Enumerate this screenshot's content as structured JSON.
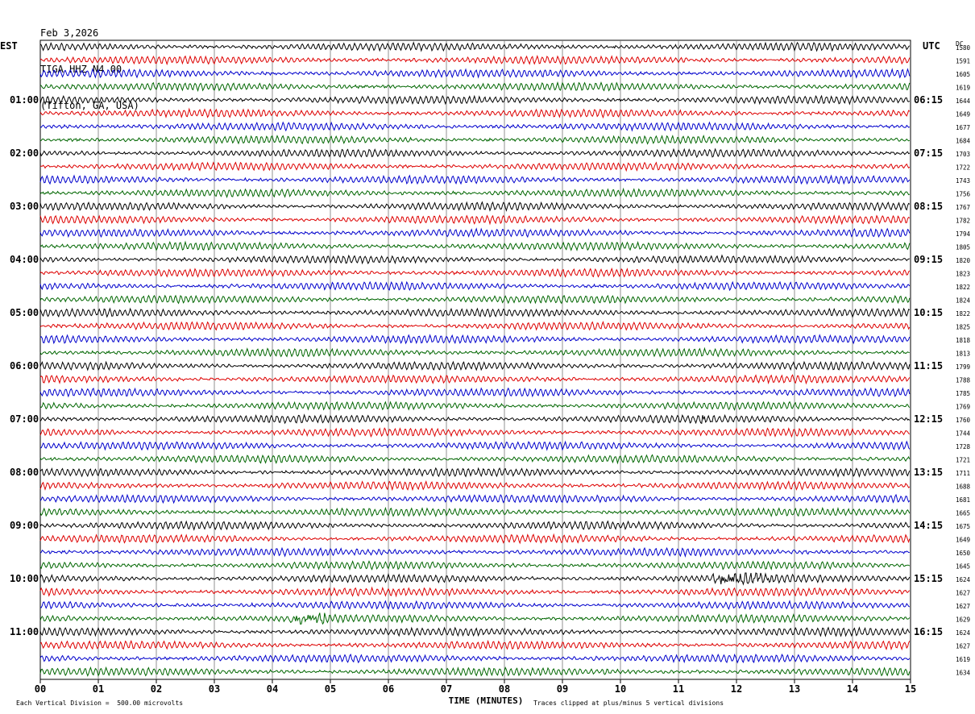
{
  "header": {
    "date": "Feb 3,2026",
    "station": "TIGA HHZ N4 00",
    "location": "(Tifton, GA, USA)"
  },
  "left_timezone": "EST",
  "right_timezone": "UTC",
  "dc_label": "DC",
  "footer": {
    "scale_note": "Each Vertical Division =  500.00 microvolts",
    "clip_note": "Traces clipped at plus/minus 5 vertical divisions"
  },
  "chart_data": {
    "type": "line",
    "xlabel": "TIME (MINUTES)",
    "x_ticks": [
      "00",
      "01",
      "02",
      "03",
      "04",
      "05",
      "06",
      "07",
      "08",
      "09",
      "10",
      "11",
      "12",
      "13",
      "14",
      "15"
    ],
    "xlim": [
      0,
      15
    ],
    "grid": "vertical minute lines",
    "trace_colors": [
      "#000000",
      "#dd0000",
      "#0000cc",
      "#006600"
    ],
    "left_hour_labels": [
      "01:00",
      "02:00",
      "03:00",
      "04:00",
      "05:00",
      "06:00",
      "07:00",
      "08:00",
      "09:00",
      "10:00",
      "11:00"
    ],
    "right_hour_labels": [
      "06:15",
      "07:15",
      "08:15",
      "09:15",
      "10:15",
      "11:15",
      "12:15",
      "13:15",
      "14:15",
      "15:15",
      "16:15"
    ],
    "dc_offsets": [
      1580,
      1591,
      1605,
      1619,
      1644,
      1649,
      1677,
      1684,
      1703,
      1722,
      1743,
      1756,
      1767,
      1782,
      1794,
      1805,
      1820,
      1823,
      1822,
      1824,
      1822,
      1825,
      1818,
      1813,
      1799,
      1788,
      1785,
      1769,
      1760,
      1744,
      1728,
      1721,
      1711,
      1688,
      1681,
      1665,
      1675,
      1649,
      1650,
      1645,
      1624,
      1627,
      1627,
      1629,
      1624,
      1627,
      1619,
      1634
    ],
    "events": [
      {
        "trace_index": 43,
        "start_min": 4.3,
        "end_min": 4.9,
        "amplitude": "moderate"
      },
      {
        "trace_index": 40,
        "start_min": 11.6,
        "end_min": 12.6,
        "amplitude": "moderate"
      },
      {
        "trace_index": 28,
        "start_min": 11.4,
        "end_min": 11.6,
        "amplitude": "small"
      }
    ]
  }
}
